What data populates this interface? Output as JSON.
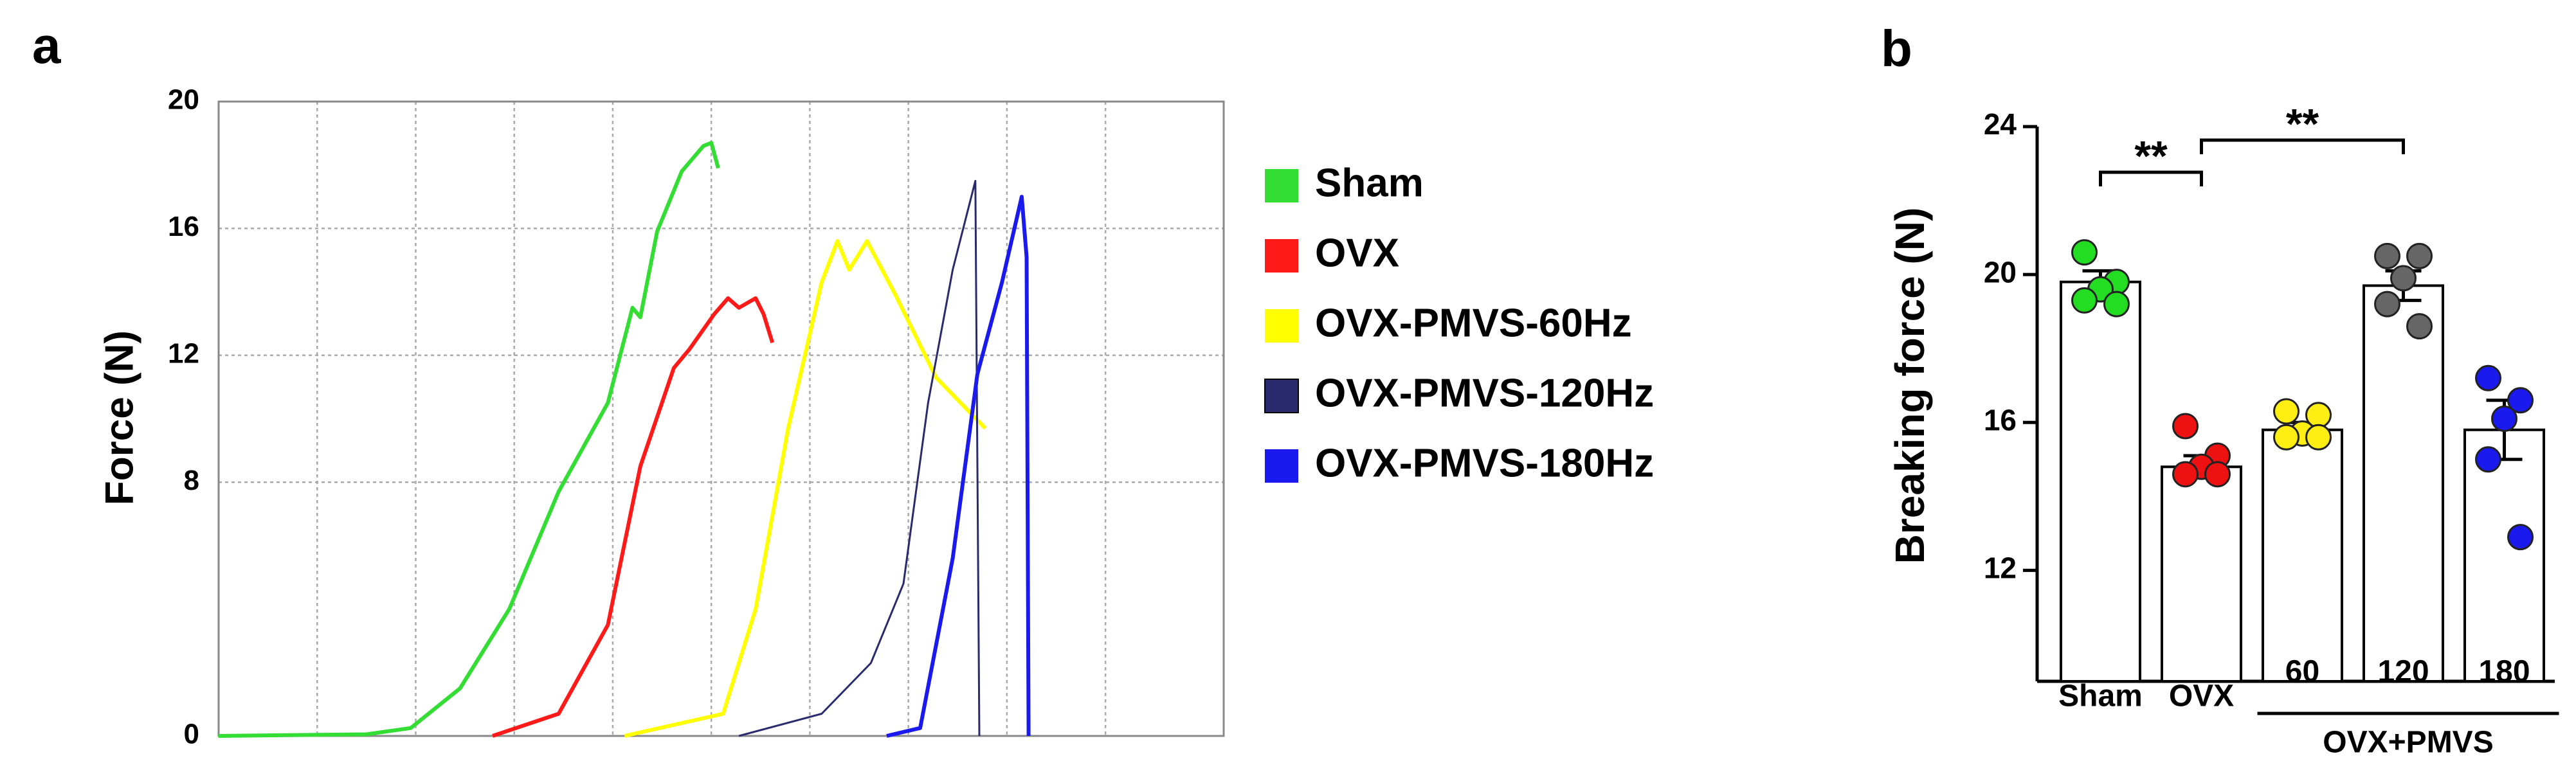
{
  "chart_data": [
    {
      "type": "line",
      "panel": "a",
      "ylabel": "Force (N)",
      "xlim": [
        0,
        10.2
      ],
      "ylim": [
        0,
        20
      ],
      "yticks": [
        0,
        8,
        12,
        16,
        20
      ],
      "grid": true,
      "legend": "right",
      "series": [
        {
          "name": "Sham",
          "color": "#33dd33",
          "x": [
            0,
            1.5,
            1.95,
            2.45,
            2.95,
            3.45,
            3.95,
            4.2,
            4.28,
            4.45,
            4.7,
            4.92,
            5.0,
            5.07
          ],
          "values": [
            0,
            0.05,
            0.25,
            1.5,
            4,
            7.7,
            10.5,
            13.5,
            13.2,
            15.9,
            17.8,
            18.6,
            18.7,
            17.9
          ]
        },
        {
          "name": "OVX",
          "color": "#ff1a1a",
          "x": [
            2.78,
            3.45,
            3.95,
            4.28,
            4.62,
            4.78,
            5.03,
            5.17,
            5.28,
            5.45,
            5.53,
            5.62
          ],
          "values": [
            0,
            0.7,
            3.5,
            8.5,
            11.6,
            12.2,
            13.3,
            13.8,
            13.5,
            13.8,
            13.3,
            12.4
          ]
        },
        {
          "name": "OVX-PMVS-60Hz",
          "color": "#ffff00",
          "x": [
            4.12,
            5.12,
            5.45,
            5.78,
            6.12,
            6.28,
            6.4,
            6.58,
            6.87,
            7.28,
            7.78
          ],
          "values": [
            0,
            0.7,
            4,
            9.7,
            14.3,
            15.6,
            14.7,
            15.6,
            13.9,
            11.3,
            9.7
          ]
        },
        {
          "name": "OVX-PMVS-120Hz",
          "color": "#2a2a6e",
          "x": [
            5.28,
            6.12,
            6.62,
            6.95,
            7.2,
            7.45,
            7.68,
            7.72
          ],
          "values": [
            0,
            0.7,
            2.3,
            4.8,
            10.5,
            14.7,
            17.5,
            0
          ]
        },
        {
          "name": "OVX-PMVS-180Hz",
          "color": "#1a1aee",
          "x": [
            6.78,
            7.12,
            7.45,
            7.7,
            7.95,
            8.15,
            8.2,
            8.22
          ],
          "values": [
            0,
            0.25,
            5.6,
            11.4,
            14.3,
            17.0,
            15.1,
            0
          ]
        }
      ]
    },
    {
      "type": "bar",
      "panel": "b",
      "ylabel": "Breaking force (N)",
      "categories": [
        "Sham",
        "OVX",
        "60",
        "120",
        "180"
      ],
      "group_label": "OVX+PMVS",
      "values": [
        19.8,
        14.8,
        15.8,
        19.7,
        15.8
      ],
      "errors": [
        0.3,
        0.3,
        0.2,
        0.4,
        0.8
      ],
      "points": [
        [
          20.6,
          19.8,
          19.6,
          19.3,
          19.2
        ],
        [
          15.9,
          15.1,
          14.8,
          14.6,
          14.6
        ],
        [
          16.3,
          16.2,
          15.7,
          15.6,
          15.6
        ],
        [
          20.5,
          20.5,
          19.9,
          19.2,
          18.6
        ],
        [
          17.2,
          16.6,
          16.1,
          15.0,
          12.9
        ]
      ],
      "colors": [
        "#22dd22",
        "#ee1111",
        "#ffee11",
        "#666666",
        "#1a1aee"
      ],
      "ylim": [
        9,
        24
      ],
      "yticks": [
        12,
        16,
        20,
        24
      ],
      "annotations": [
        "**",
        "**"
      ]
    }
  ]
}
